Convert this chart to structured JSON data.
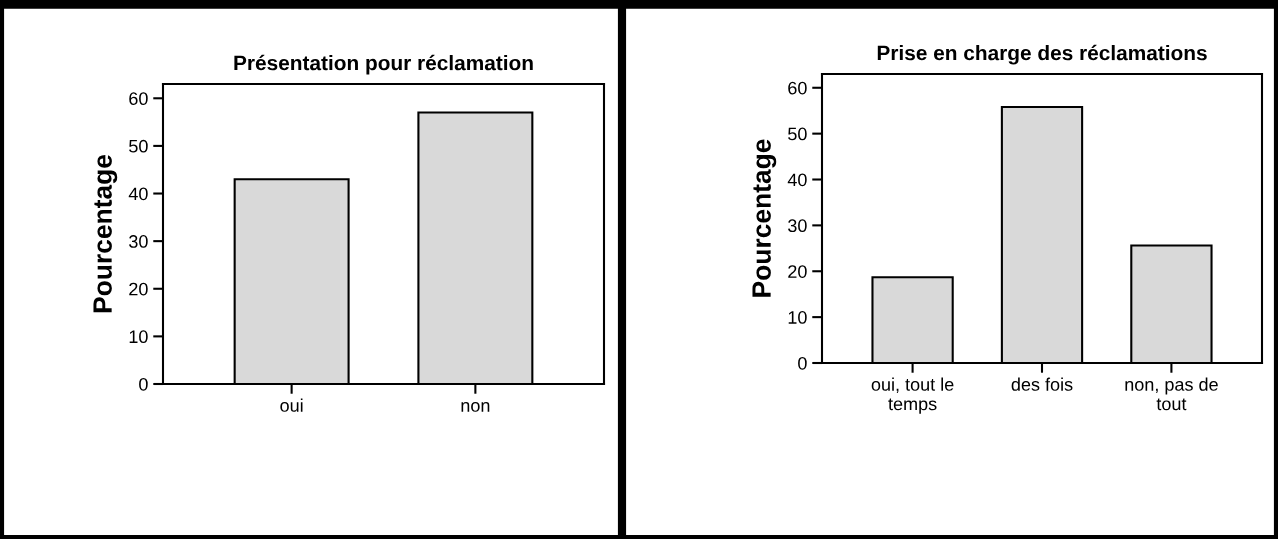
{
  "chart_data": [
    {
      "type": "bar",
      "title": "Présentation pour réclamation",
      "ylabel": "Pourcentage",
      "categories": [
        "oui",
        "non"
      ],
      "values": [
        43,
        57
      ],
      "color": "#d9d9d9",
      "ylim": [
        0,
        63
      ],
      "yticks": [
        0,
        10,
        20,
        30,
        40,
        50,
        60
      ],
      "grid": false,
      "legend": false
    },
    {
      "type": "bar",
      "title": "Prise en charge des réclamations",
      "ylabel": "Pourcentage",
      "categories": [
        "oui, tout le temps",
        "des fois",
        "non, pas de tout"
      ],
      "values": [
        18.7,
        55.8,
        25.6
      ],
      "color": "#d9d9d9",
      "ylim": [
        0,
        63
      ],
      "yticks": [
        0,
        10,
        20,
        30,
        40,
        50,
        60
      ],
      "grid": false,
      "legend": false
    }
  ]
}
